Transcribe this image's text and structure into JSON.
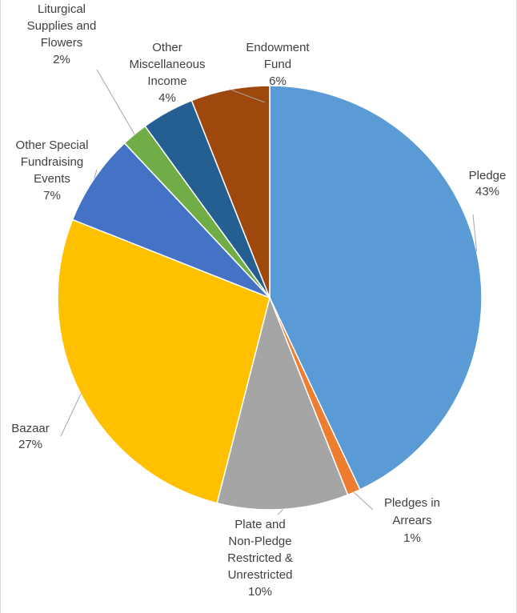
{
  "chart_data": {
    "type": "pie",
    "title": "",
    "slices": [
      {
        "name": "Pledge",
        "value": 43,
        "label_lines": [
          "Pledge",
          "43%"
        ],
        "color": "#5b9bd5"
      },
      {
        "name": "Pledges in Arrears",
        "value": 1,
        "label_lines": [
          "Pledges in",
          "Arrears",
          "1%"
        ],
        "color": "#ed7d31"
      },
      {
        "name": "Plate and Non-Pledge Restricted & Unrestricted",
        "value": 10,
        "label_lines": [
          "Plate and",
          "Non-Pledge",
          "Restricted &",
          "Unrestricted",
          "10%"
        ],
        "color": "#a5a5a5"
      },
      {
        "name": "Bazaar",
        "value": 27,
        "label_lines": [
          "Bazaar",
          "27%"
        ],
        "color": "#ffc000"
      },
      {
        "name": "Other Special Fundraising Events",
        "value": 7,
        "label_lines": [
          "Other Special",
          "Fundraising",
          "Events",
          "7%"
        ],
        "color": "#4472c4"
      },
      {
        "name": "Liturgical Supplies and Flowers",
        "value": 2,
        "label_lines": [
          "Liturgical",
          "Supplies and",
          "Flowers",
          "2%"
        ],
        "color": "#70ad47"
      },
      {
        "name": "Other Miscellaneous Income",
        "value": 4,
        "label_lines": [
          "Other",
          "Miscellaneous",
          "Income",
          "4%"
        ],
        "color": "#255e91"
      },
      {
        "name": "Endowment Fund",
        "value": 6,
        "label_lines": [
          "Endowment",
          "Fund",
          "6%"
        ],
        "color": "#9e480e"
      }
    ],
    "legend": "none",
    "data_labels": "outside with leader lines"
  }
}
